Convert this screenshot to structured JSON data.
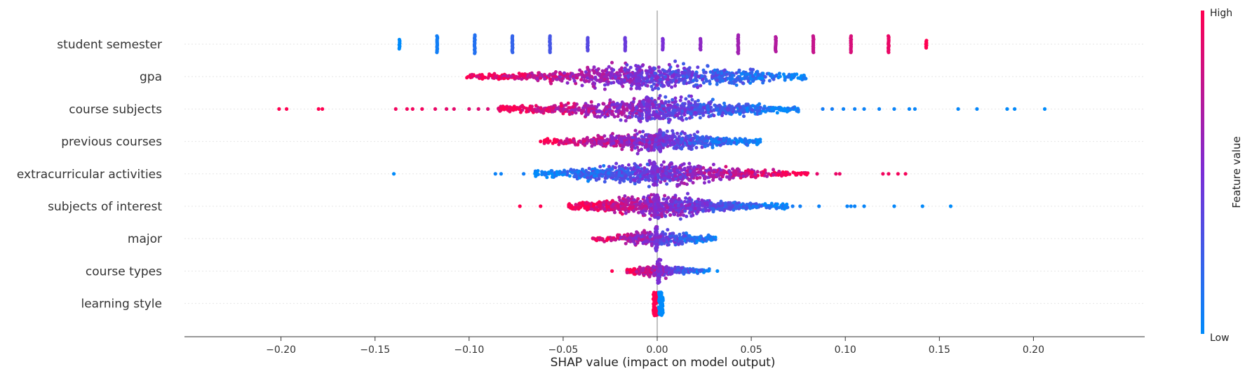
{
  "chart_data": {
    "type": "scatter",
    "subtype": "shap-beeswarm",
    "xlabel": "SHAP value (impact on model output)",
    "xlim": [
      -0.222,
      0.225
    ],
    "xticks": [
      -0.2,
      -0.15,
      -0.1,
      -0.05,
      0.0,
      0.05,
      0.1,
      0.15,
      0.2
    ],
    "xtick_labels": [
      "−0.20",
      "−0.15",
      "−0.10",
      "−0.05",
      "0.00",
      "0.05",
      "0.10",
      "0.15",
      "0.20"
    ],
    "colorbar": {
      "title": "Feature value",
      "high_label": "High",
      "low_label": "Low",
      "high_color": "#ff0051",
      "mid_color": "#7b2dd6",
      "low_color": "#008bfb"
    },
    "features": [
      {
        "name": "student semester",
        "kind": "discrete",
        "points": [
          [
            -0.137,
            0.0
          ],
          [
            -0.117,
            0.07
          ],
          [
            -0.097,
            0.14
          ],
          [
            -0.077,
            0.21
          ],
          [
            -0.057,
            0.28
          ],
          [
            -0.037,
            0.35
          ],
          [
            -0.017,
            0.43
          ],
          [
            0.003,
            0.5
          ],
          [
            0.023,
            0.57
          ],
          [
            0.043,
            0.64
          ],
          [
            0.063,
            0.71
          ],
          [
            0.083,
            0.78
          ],
          [
            0.103,
            0.85
          ],
          [
            0.123,
            0.92
          ],
          [
            0.143,
            1.0
          ]
        ],
        "band_heights": [
          0.5,
          0.9,
          1.0,
          0.9,
          0.9,
          0.7,
          0.7,
          0.6,
          0.6,
          1.0,
          0.8,
          0.9,
          0.9,
          0.9,
          0.4
        ]
      },
      {
        "name": "gpa",
        "kind": "continuous",
        "range": [
          -0.102,
          0.079
        ],
        "pile": [
          -0.011,
          -0.009
        ],
        "trend": "high-left",
        "density": 1.0
      },
      {
        "name": "course subjects",
        "kind": "continuous",
        "range": [
          -0.085,
          0.075
        ],
        "pile": [
          -0.006,
          -0.004
        ],
        "trend": "high-left",
        "density": 1.0,
        "outliers": [
          [
            -0.201,
            1
          ],
          [
            -0.197,
            1
          ],
          [
            -0.18,
            1
          ],
          [
            -0.178,
            1
          ],
          [
            -0.139,
            0.95
          ],
          [
            -0.133,
            0.95
          ],
          [
            -0.13,
            0.95
          ],
          [
            -0.125,
            0.95
          ],
          [
            -0.118,
            0.92
          ],
          [
            -0.112,
            0.9
          ],
          [
            -0.108,
            0.9
          ],
          [
            -0.1,
            0.88
          ],
          [
            -0.095,
            0.88
          ],
          [
            -0.09,
            0.86
          ],
          [
            0.088,
            0.08
          ],
          [
            0.093,
            0.08
          ],
          [
            0.099,
            0.05
          ],
          [
            0.105,
            0.05
          ],
          [
            0.11,
            0.05
          ],
          [
            0.118,
            0.04
          ],
          [
            0.126,
            0.04
          ],
          [
            0.134,
            0.03
          ],
          [
            0.137,
            0.03
          ],
          [
            0.16,
            0.02
          ],
          [
            0.17,
            0.02
          ],
          [
            0.186,
            0.01
          ],
          [
            0.19,
            0.01
          ],
          [
            0.206,
            0.0
          ]
        ]
      },
      {
        "name": "previous courses",
        "kind": "continuous",
        "range": [
          -0.06,
          0.055
        ],
        "pile": [
          0.001,
          0.002
        ],
        "trend": "high-left",
        "density": 0.8,
        "outliers": [
          [
            -0.062,
            1
          ]
        ]
      },
      {
        "name": "extracurricular activities",
        "kind": "continuous",
        "range": [
          -0.065,
          0.08
        ],
        "pile": [
          -0.003,
          -0.001
        ],
        "trend": "high-right",
        "density": 0.9,
        "outliers": [
          [
            -0.14,
            0.0
          ],
          [
            -0.086,
            0.05
          ],
          [
            -0.083,
            0.05
          ],
          [
            -0.071,
            0.07
          ],
          [
            0.085,
            0.9
          ],
          [
            0.095,
            0.92
          ],
          [
            0.097,
            0.92
          ],
          [
            0.12,
            0.95
          ],
          [
            0.123,
            0.95
          ],
          [
            0.128,
            0.96
          ],
          [
            0.132,
            0.97
          ]
        ]
      },
      {
        "name": "subjects of interest",
        "kind": "continuous",
        "range": [
          -0.047,
          0.07
        ],
        "pile": [
          -0.002,
          0.001
        ],
        "trend": "high-left",
        "density": 0.9,
        "outliers": [
          [
            -0.073,
            1
          ],
          [
            -0.062,
            1
          ],
          [
            0.072,
            0.08
          ],
          [
            0.076,
            0.06
          ],
          [
            0.086,
            0.05
          ],
          [
            0.101,
            0.04
          ],
          [
            0.103,
            0.04
          ],
          [
            0.105,
            0.04
          ],
          [
            0.11,
            0.03
          ],
          [
            0.126,
            0.02
          ],
          [
            0.141,
            0.01
          ],
          [
            0.156,
            0.0
          ]
        ]
      },
      {
        "name": "major",
        "kind": "continuous",
        "range": [
          -0.035,
          0.031
        ],
        "pile": [
          -0.001,
          0.0
        ],
        "trend": "high-left",
        "density": 0.45
      },
      {
        "name": "course types",
        "kind": "continuous",
        "range": [
          -0.016,
          0.028
        ],
        "pile": [
          0.0,
          0.002
        ],
        "trend": "high-left",
        "density": 0.35,
        "outliers": [
          [
            -0.024,
            1
          ],
          [
            0.032,
            0.0
          ]
        ]
      },
      {
        "name": "learning style",
        "kind": "binary",
        "groups": [
          [
            -0.001,
            1
          ],
          [
            0.002,
            0
          ]
        ]
      }
    ]
  }
}
